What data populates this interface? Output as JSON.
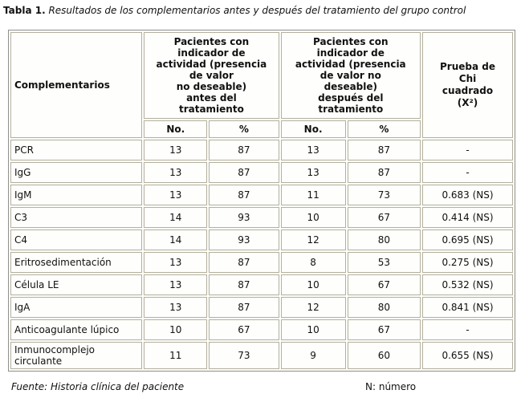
{
  "title": {
    "label": "Tabla 1.",
    "text": " Resultados de los complementarios antes y después del tratamiento del grupo control"
  },
  "table": {
    "header": {
      "complementarios": "Complementarios",
      "before_group": "Pacientes con\nindicador de\nactividad (presencia\nde valor\nno deseable)\nantes del\ntratamiento",
      "after_group": "Pacientes con\nindicador de\nactividad (presencia\nde valor no\ndeseable)\ndespués del\ntratamiento",
      "chi": "Prueba de\nChi\ncuadrado\n(X²)",
      "no_label": "No.",
      "pct_label": "%"
    },
    "rows": [
      {
        "name": "PCR",
        "before_no": "13",
        "before_pct": "87",
        "after_no": "13",
        "after_pct": "87",
        "chi": "-"
      },
      {
        "name": "IgG",
        "before_no": "13",
        "before_pct": "87",
        "after_no": "13",
        "after_pct": "87",
        "chi": "-"
      },
      {
        "name": "IgM",
        "before_no": "13",
        "before_pct": "87",
        "after_no": "11",
        "after_pct": "73",
        "chi": "0.683 (NS)"
      },
      {
        "name": "C3",
        "before_no": "14",
        "before_pct": "93",
        "after_no": "10",
        "after_pct": "67",
        "chi": "0.414 (NS)"
      },
      {
        "name": "C4",
        "before_no": "14",
        "before_pct": "93",
        "after_no": "12",
        "after_pct": "80",
        "chi": "0.695 (NS)"
      },
      {
        "name": "Eritrosedimentación",
        "before_no": "13",
        "before_pct": "87",
        "after_no": "8",
        "after_pct": "53",
        "chi": "0.275 (NS)"
      },
      {
        "name": "Célula LE",
        "before_no": "13",
        "before_pct": "87",
        "after_no": "10",
        "after_pct": "67",
        "chi": "0.532 (NS)"
      },
      {
        "name": "IgA",
        "before_no": "13",
        "before_pct": "87",
        "after_no": "12",
        "after_pct": "80",
        "chi": "0.841 (NS)"
      },
      {
        "name": "Anticoagulante lúpico",
        "before_no": "10",
        "before_pct": "67",
        "after_no": "10",
        "after_pct": "67",
        "chi": "-"
      },
      {
        "name": "Inmunocomplejo circulante",
        "before_no": "11",
        "before_pct": "73",
        "after_no": "9",
        "after_pct": "60",
        "chi": "0.655 (NS)"
      }
    ]
  },
  "footer": {
    "source": "Fuente: Historia clínica del paciente",
    "note": "N: número"
  }
}
